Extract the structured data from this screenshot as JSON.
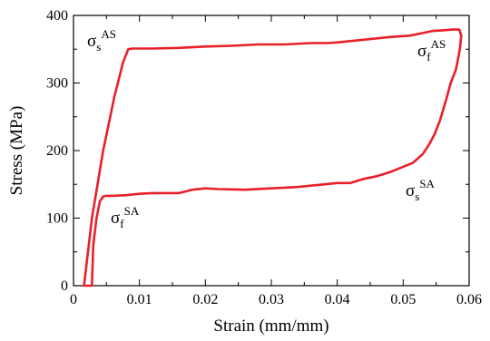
{
  "chart_data": {
    "type": "line",
    "title": "",
    "xlabel": "Strain (mm/mm)",
    "ylabel": "Stress (MPa)",
    "xlim": [
      0,
      0.06
    ],
    "ylim": [
      0,
      400
    ],
    "grid": false,
    "legend": "none",
    "x_ticks": [
      0,
      0.01,
      0.02,
      0.03,
      0.04,
      0.05,
      0.06
    ],
    "x_tick_labels": [
      "0",
      "0.01",
      "0.02",
      "0.03",
      "0.04",
      "0.05",
      "0.06"
    ],
    "y_ticks": [
      0,
      100,
      200,
      300,
      400
    ],
    "y_tick_labels": [
      "0",
      "100",
      "200",
      "300",
      "400"
    ],
    "series": [
      {
        "color": "#e8202a",
        "x": [
          0.0016,
          0.0028,
          0.0045,
          0.0062,
          0.0075,
          0.0083,
          0.009,
          0.012,
          0.016,
          0.02,
          0.024,
          0.028,
          0.032,
          0.036,
          0.0385,
          0.04,
          0.044,
          0.048,
          0.051,
          0.053,
          0.0545,
          0.056,
          0.0575,
          0.0585,
          0.0588,
          0.0586,
          0.058,
          0.0572,
          0.0565,
          0.0556,
          0.0548,
          0.054,
          0.053,
          0.0515,
          0.05,
          0.048,
          0.046,
          0.044,
          0.042,
          0.04,
          0.038,
          0.036,
          0.034,
          0.03,
          0.026,
          0.022,
          0.02,
          0.018,
          0.016,
          0.014,
          0.012,
          0.01,
          0.008,
          0.006,
          0.005,
          0.0045,
          0.004,
          0.0035,
          0.003,
          0.0028,
          0.0016
        ],
        "y": [
          0,
          100,
          200,
          280,
          330,
          350,
          351,
          351,
          352,
          354,
          355,
          357,
          357,
          359,
          359,
          360,
          364,
          368,
          370,
          374,
          377,
          378,
          379,
          379,
          370,
          350,
          320,
          300,
          275,
          245,
          225,
          210,
          195,
          182,
          176,
          168,
          162,
          158,
          152,
          152,
          150,
          148,
          146,
          144,
          142,
          143,
          144,
          142,
          137,
          137,
          137,
          136,
          134,
          133,
          133,
          132,
          125,
          100,
          60,
          0,
          0
        ]
      }
    ],
    "annotations": [
      {
        "base": "σ",
        "sub": "s",
        "sup": "AS"
      },
      {
        "base": "σ",
        "sub": "f",
        "sup": "AS"
      },
      {
        "base": "σ",
        "sub": "s",
        "sup": "SA"
      },
      {
        "base": "σ",
        "sub": "f",
        "sup": "SA"
      }
    ]
  }
}
